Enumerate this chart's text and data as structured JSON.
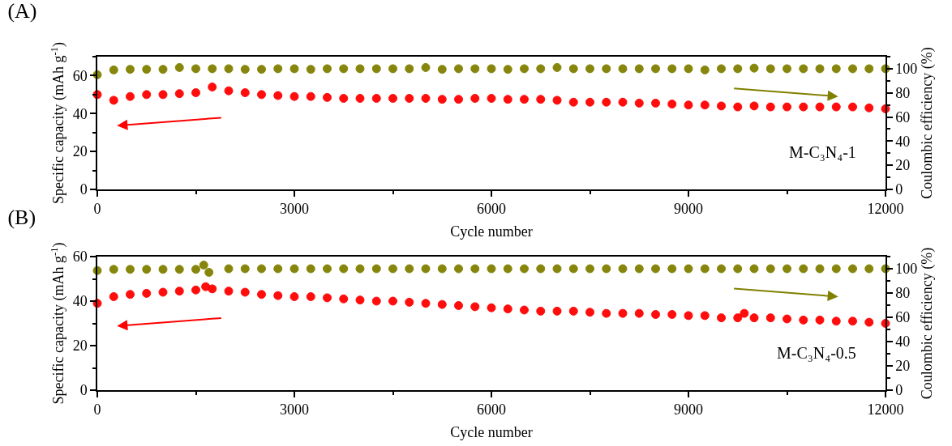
{
  "chart_data": [
    {
      "type": "scatter",
      "title": "(A)",
      "xlabel": "Cycle number",
      "ylabel": "Specific capacity (mAh g$^{-1}$)",
      "y2label": "Coulombic efficiency (%)",
      "annotations": [
        "M-C₃N₄-1"
      ],
      "marker": "circle",
      "grid": false,
      "xlim": [
        0,
        12000
      ],
      "xticks": [
        0,
        3000,
        6000,
        9000,
        12000
      ],
      "ylim": [
        0,
        70
      ],
      "yticks": [
        0,
        20,
        40,
        60
      ],
      "y2lim": [
        0,
        110
      ],
      "y2ticks": [
        0,
        20,
        40,
        60,
        80,
        100
      ],
      "series": [
        {
          "color": "#ff0000",
          "x": [
            0,
            250,
            500,
            750,
            1000,
            1250,
            1500,
            1750,
            2000,
            2250,
            2500,
            2750,
            3000,
            3250,
            3500,
            3750,
            4000,
            4250,
            4500,
            4750,
            5000,
            5250,
            5500,
            5750,
            6000,
            6250,
            6500,
            6750,
            7000,
            7250,
            7500,
            7750,
            8000,
            8250,
            8500,
            8750,
            9000,
            9250,
            9500,
            9750,
            10000,
            10250,
            10500,
            10750,
            11000,
            11250,
            11500,
            11750,
            12000
          ],
          "values": [
            50,
            47,
            49,
            50,
            50,
            50.5,
            51,
            54,
            52,
            51,
            50,
            49.5,
            49,
            49,
            48.5,
            48,
            48,
            48,
            48,
            48,
            48,
            47.5,
            47.5,
            48,
            48,
            47.5,
            47.5,
            47.5,
            47,
            46,
            46,
            46,
            46,
            45.5,
            45.5,
            45,
            44.5,
            44.5,
            44,
            43.5,
            44,
            43.5,
            43.5,
            43.5,
            43.5,
            43.5,
            43.5,
            43,
            42.5
          ]
        },
        {
          "color": "#808000",
          "axis": "y2",
          "x": [
            0,
            250,
            500,
            750,
            1000,
            1250,
            1500,
            1750,
            2000,
            2250,
            2500,
            2750,
            3000,
            3250,
            3500,
            3750,
            4000,
            4250,
            4500,
            4750,
            5000,
            5250,
            5500,
            5750,
            6000,
            6250,
            6500,
            6750,
            7000,
            7250,
            7500,
            7750,
            8000,
            8250,
            8500,
            8750,
            9000,
            9250,
            9500,
            9750,
            10000,
            10250,
            10500,
            10750,
            11000,
            11250,
            11500,
            11750,
            12000
          ],
          "values": [
            95,
            99,
            99.5,
            99.5,
            99.5,
            101,
            100,
            100,
            100,
            99.5,
            99.5,
            100,
            100,
            99.5,
            100,
            100,
            100,
            100,
            100,
            100,
            101,
            99.5,
            100,
            100,
            100,
            99.5,
            100,
            100,
            101,
            100,
            100,
            100,
            100,
            100,
            100,
            100,
            100,
            99,
            100,
            100,
            100.5,
            100,
            100,
            100,
            100,
            100,
            100,
            100,
            100
          ]
        }
      ]
    },
    {
      "type": "scatter",
      "title": "(B)",
      "xlabel": "Cycle number",
      "ylabel": "Specific capacity (mAh g$^{-1}$)",
      "y2label": "Coulombic efficiency (%)",
      "annotations": [
        "M-C₃N₄-0.5"
      ],
      "marker": "circle",
      "grid": false,
      "xlim": [
        0,
        12000
      ],
      "xticks": [
        0,
        3000,
        6000,
        9000,
        12000
      ],
      "ylim": [
        0,
        60
      ],
      "yticks": [
        0,
        20,
        40,
        60
      ],
      "y2lim": [
        0,
        110
      ],
      "y2ticks": [
        0,
        20,
        40,
        60,
        80,
        100
      ],
      "series": [
        {
          "color": "#ff0000",
          "x": [
            0,
            250,
            500,
            750,
            1000,
            1250,
            1500,
            1650,
            1750,
            2000,
            2250,
            2500,
            2750,
            3000,
            3250,
            3500,
            3750,
            4000,
            4250,
            4500,
            4750,
            5000,
            5250,
            5500,
            5750,
            6000,
            6250,
            6500,
            6750,
            7000,
            7250,
            7500,
            7750,
            8000,
            8250,
            8500,
            8750,
            9000,
            9250,
            9500,
            9750,
            9850,
            10000,
            10250,
            10500,
            10750,
            11000,
            11250,
            11500,
            11750,
            12000
          ],
          "values": [
            39,
            42,
            43,
            43.5,
            44,
            44.5,
            45,
            46.5,
            45.5,
            44.5,
            44,
            43,
            42.5,
            42,
            42,
            41.5,
            41,
            40.5,
            40,
            40,
            39.5,
            39,
            38.5,
            38,
            37.5,
            37,
            36.5,
            36,
            35.5,
            35.5,
            35.5,
            35,
            34.5,
            34.5,
            34.5,
            34,
            34,
            33.5,
            33.5,
            32.5,
            32.5,
            34.5,
            32.5,
            32.5,
            32,
            31.5,
            31.5,
            31,
            31,
            30.5,
            30
          ]
        },
        {
          "color": "#808000",
          "axis": "y2",
          "x": [
            0,
            250,
            500,
            750,
            1000,
            1250,
            1500,
            1620,
            1700,
            2000,
            2250,
            2500,
            2750,
            3000,
            3250,
            3500,
            3750,
            4000,
            4250,
            4500,
            4750,
            5000,
            5250,
            5500,
            5750,
            6000,
            6250,
            6500,
            6750,
            7000,
            7250,
            7500,
            7750,
            8000,
            8250,
            8500,
            8750,
            9000,
            9250,
            9500,
            9750,
            10000,
            10250,
            10500,
            10750,
            11000,
            11250,
            11500,
            11750,
            12000
          ],
          "values": [
            98.5,
            99.5,
            99.5,
            99.5,
            99.5,
            99.5,
            99.5,
            103,
            97,
            100,
            100,
            100,
            100,
            100,
            100,
            100,
            100,
            100,
            100,
            100,
            100,
            100,
            100,
            100,
            100,
            100,
            100,
            100,
            100,
            100,
            100,
            100,
            100,
            100,
            100,
            100,
            100,
            100,
            100,
            100,
            100,
            100,
            100,
            100,
            100,
            100,
            100,
            100,
            100,
            100
          ]
        }
      ]
    }
  ]
}
